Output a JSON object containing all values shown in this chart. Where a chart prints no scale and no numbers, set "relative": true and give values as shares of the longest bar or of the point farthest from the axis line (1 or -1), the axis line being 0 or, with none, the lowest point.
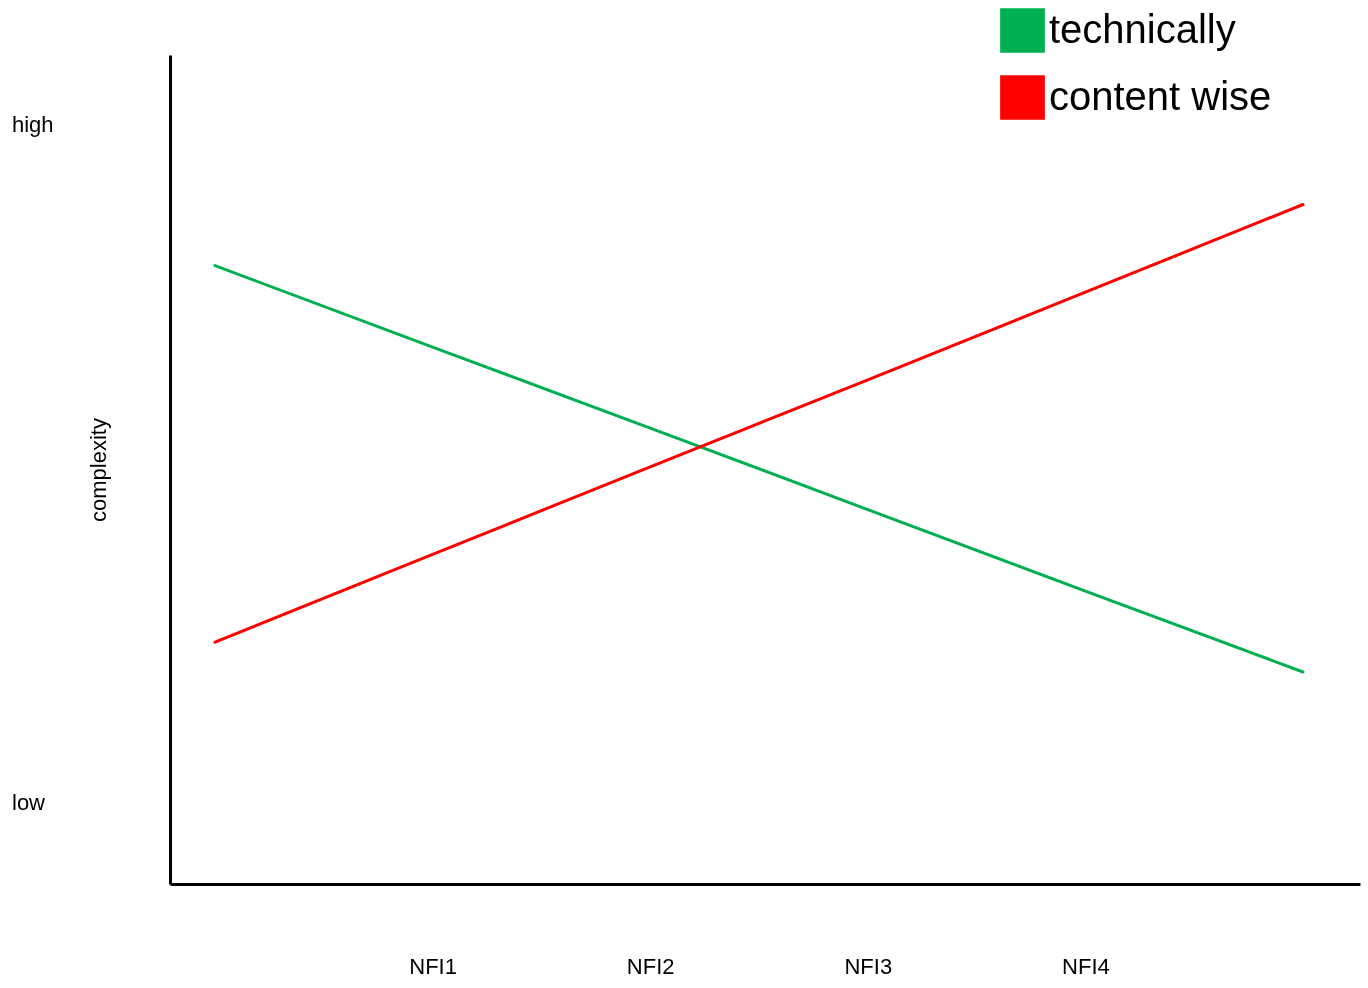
{
  "chart_data": {
    "type": "line",
    "ylabel": "complexity",
    "relative": true,
    "categories": [
      null,
      "NFI1",
      "NFI2",
      "NFI3",
      "NFI4",
      null
    ],
    "annotations": [
      "high",
      "low"
    ],
    "series": [
      {
        "name": "technically",
        "color": "#00b050",
        "values": [
          0.91,
          0.79,
          0.671,
          0.551,
          0.431,
          0.312
        ]
      },
      {
        "name": "content wise",
        "color": "#ff0000",
        "values": [
          0.356,
          0.485,
          0.614,
          0.742,
          0.871,
          1
        ]
      }
    ],
    "grid": false,
    "legend": "top right",
    "marker": "none",
    "line_style": "solid"
  }
}
